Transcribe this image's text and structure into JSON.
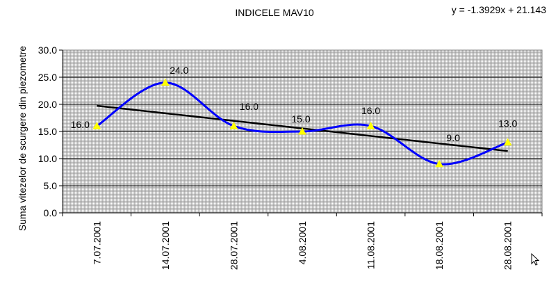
{
  "chart_data": {
    "type": "line",
    "title": "INDICELE MAV10",
    "ylabel": "Suma vitezelor de scurgere din piezometre",
    "xlabel": "",
    "categories": [
      "7.07.2001",
      "14.07.2001",
      "28.07.2001",
      "4.08.2001",
      "11.08.2001",
      "18.08.2001",
      "28.08.2001"
    ],
    "series": [
      {
        "values": [
          16.0,
          24.0,
          16.0,
          15.0,
          16.0,
          9.0,
          13.0
        ],
        "color": "#0000ff",
        "marker_color": "#ffff00",
        "smooth": true
      }
    ],
    "data_labels": [
      "16.0",
      "24.0",
      "16.0",
      "15.0",
      "16.0",
      "9.0",
      "13.0"
    ],
    "trendline": {
      "type": "linear",
      "slope": -1.3929,
      "intercept": 21.143,
      "equation_text": "y = -1.3929x + 21.143",
      "color": "#000000"
    },
    "ylim": [
      0,
      30
    ],
    "yticks": [
      "0.0",
      "5.0",
      "10.0",
      "15.0",
      "20.0",
      "25.0",
      "30.0"
    ],
    "grid": true,
    "plot_background": "#c0c0c0"
  },
  "cursor": {
    "icon": "mouse-pointer-icon"
  }
}
